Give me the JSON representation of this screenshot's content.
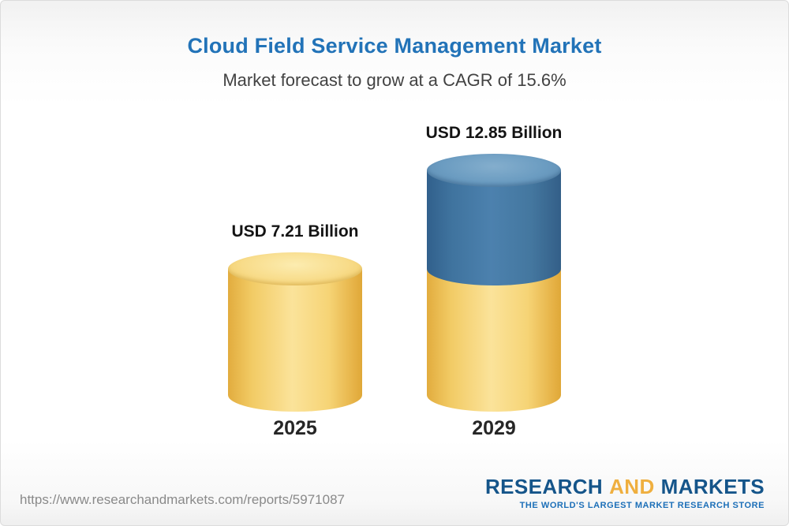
{
  "chart_data": {
    "type": "bar",
    "style": "3d-cylinder",
    "title": "Cloud Field Service Management Market",
    "subtitle": "Market forecast to grow at a CAGR of 15.6%",
    "cagr_pct": 15.6,
    "unit": "USD Billion",
    "categories": [
      "2025",
      "2029"
    ],
    "values": [
      7.21,
      12.85
    ],
    "value_labels": [
      "USD 7.21 Billion",
      "USD 12.85 Billion"
    ],
    "series": [
      {
        "name": "Base market (yellow)",
        "values": [
          7.21,
          7.21
        ],
        "color": "#f2cc68"
      },
      {
        "name": "Growth to 2029 (blue)",
        "values": [
          0,
          5.64
        ],
        "color": "#43759f"
      }
    ],
    "legend": "none",
    "grid": false,
    "ylim": [
      0,
      14
    ]
  },
  "colors": {
    "title_blue": "#2273b8",
    "bar_yellow": "#f2cc68",
    "bar_blue": "#43759f",
    "logo_blue": "#15558a",
    "logo_gold": "#efaf3f"
  },
  "footer": {
    "url": "https://www.researchandmarkets.com/reports/5971087",
    "logo": {
      "research": "RESEARCH",
      "and": "AND",
      "markets": "MARKETS",
      "tagline": "THE WORLD'S LARGEST MARKET RESEARCH STORE"
    }
  }
}
